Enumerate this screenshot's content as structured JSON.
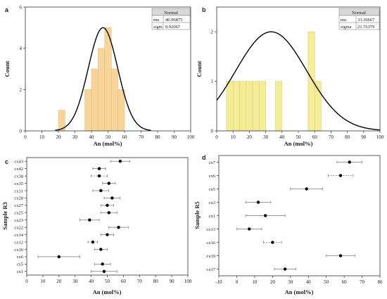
{
  "chart_data": [
    {
      "panel": "a",
      "type": "bar",
      "xlabel": "An (mol%)",
      "ylabel": "Count",
      "xlim": [
        0,
        100
      ],
      "ylim": [
        0,
        6
      ],
      "xticks": [
        0,
        10,
        20,
        30,
        40,
        50,
        60,
        70,
        80,
        90,
        100
      ],
      "yticks": [
        0,
        2,
        4,
        6
      ],
      "bin_width": 4,
      "bins": [
        {
          "x0": 20,
          "count": 1
        },
        {
          "x0": 36,
          "count": 2
        },
        {
          "x0": 40,
          "count": 3
        },
        {
          "x0": 44,
          "count": 4
        },
        {
          "x0": 48,
          "count": 5
        },
        {
          "x0": 52,
          "count": 3
        },
        {
          "x0": 56,
          "count": 2
        }
      ],
      "fit": {
        "mu": 46.96875,
        "sigma": 8.92067,
        "curve_range": [
          18,
          76
        ],
        "peak_count": 5.0
      },
      "stats_box": {
        "header": "Normal",
        "row1_label": "mu",
        "row1_value": "46.96875",
        "row2_label": "sigm",
        "row2_value": "8.92067"
      },
      "colors": {
        "bar": "#f7d59a",
        "bar_edge": "#e5b770",
        "curve": "#000000"
      }
    },
    {
      "panel": "b",
      "type": "bar",
      "xlabel": "An (mol%)",
      "ylabel": "Count",
      "xlim": [
        0,
        100
      ],
      "ylim": [
        0,
        2.5
      ],
      "xticks": [
        0,
        10,
        20,
        30,
        40,
        50,
        60,
        70,
        80,
        90,
        100
      ],
      "yticks": [
        0,
        1,
        2
      ],
      "bin_width": 4,
      "bins": [
        {
          "x0": 6,
          "count": 1
        },
        {
          "x0": 10,
          "count": 1
        },
        {
          "x0": 14,
          "count": 1
        },
        {
          "x0": 18,
          "count": 1
        },
        {
          "x0": 22,
          "count": 1
        },
        {
          "x0": 26,
          "count": 1
        },
        {
          "x0": 36,
          "count": 1
        },
        {
          "x0": 56,
          "count": 2
        },
        {
          "x0": 60,
          "count": 1
        }
      ],
      "fit": {
        "mu": 33.36667,
        "sigma": 21.76379,
        "curve_range": [
          0,
          100
        ],
        "peak_count": 2.0
      },
      "stats_box": {
        "header": "Normal",
        "row1_label": "mu",
        "row1_value": "33.36667",
        "row2_label": "sigma",
        "row2_value": "21.76379"
      },
      "colors": {
        "bar": "#f5ec98",
        "bar_edge": "#d8cc60",
        "curve": "#000000"
      }
    },
    {
      "panel": "c",
      "type": "scatter",
      "xlabel": "An (mol%)",
      "ylabel": "Sample R3",
      "xlim": [
        0,
        100
      ],
      "xticks": [
        0,
        10,
        20,
        30,
        40,
        50,
        60,
        70,
        80,
        90,
        100
      ],
      "points": [
        {
          "label": "cx43",
          "x": 58,
          "err": 6,
          "dashed": false
        },
        {
          "label": "cx42",
          "x": 45,
          "err": 4,
          "dashed": false
        },
        {
          "label": "cx38",
          "x": 45,
          "err": 5,
          "dashed": true
        },
        {
          "label": "cx35",
          "x": 51,
          "err": 4,
          "dashed": false
        },
        {
          "label": "cx31",
          "x": 46,
          "err": 5,
          "dashed": false
        },
        {
          "label": "cx28",
          "x": 53,
          "err": 5,
          "dashed": false
        },
        {
          "label": "cx27",
          "x": 50,
          "err": 4,
          "dashed": false
        },
        {
          "label": "cx25",
          "x": 51,
          "err": 5,
          "dashed": false
        },
        {
          "label": "cx23",
          "x": 39,
          "err": 6,
          "dashed": false
        },
        {
          "label": "cx22",
          "x": 57,
          "err": 6,
          "dashed": false
        },
        {
          "label": "cx14",
          "x": 50,
          "err": 4,
          "dashed": false
        },
        {
          "label": "cx12",
          "x": 41,
          "err": 3,
          "dashed": true
        },
        {
          "label": "cx10",
          "x": 46,
          "err": 4,
          "dashed": false
        },
        {
          "label": "cx6",
          "x": 20,
          "err": 13,
          "dashed": false
        },
        {
          "label": "cx5",
          "x": 47,
          "err": 5,
          "dashed": false
        },
        {
          "label": "cx1",
          "x": 48,
          "err": 8,
          "dashed": false
        }
      ],
      "colors": {
        "point": "#000000",
        "errbar": "#777777"
      }
    },
    {
      "panel": "d",
      "type": "scatter",
      "xlabel": "An (mol%)",
      "ylabel": "Sample R5",
      "xlim": [
        -10,
        80
      ],
      "xticks": [
        -10,
        0,
        10,
        20,
        30,
        40,
        50,
        60,
        70,
        80
      ],
      "points": [
        {
          "label": "cx7",
          "x": 63,
          "err": 7,
          "dashed": false
        },
        {
          "label": "cx6",
          "x": 58,
          "err": 7,
          "dashed": true
        },
        {
          "label": "cx5",
          "x": 39,
          "err": 9,
          "dashed": false
        },
        {
          "label": "cx3",
          "x": 12,
          "err": 7,
          "dashed": false
        },
        {
          "label": "cx1",
          "x": 16,
          "err": 11,
          "dashed": false
        },
        {
          "label": "cx13",
          "x": 7,
          "err": 7,
          "dashed": false
        },
        {
          "label": "cx16",
          "x": 20,
          "err": 5,
          "dashed": true
        },
        {
          "label": "cx19",
          "x": 58,
          "err": 8,
          "dashed": false
        },
        {
          "label": "cx17",
          "x": 27,
          "err": 6,
          "dashed": false
        }
      ],
      "colors": {
        "point": "#000000",
        "errbar": "#777777"
      }
    }
  ]
}
